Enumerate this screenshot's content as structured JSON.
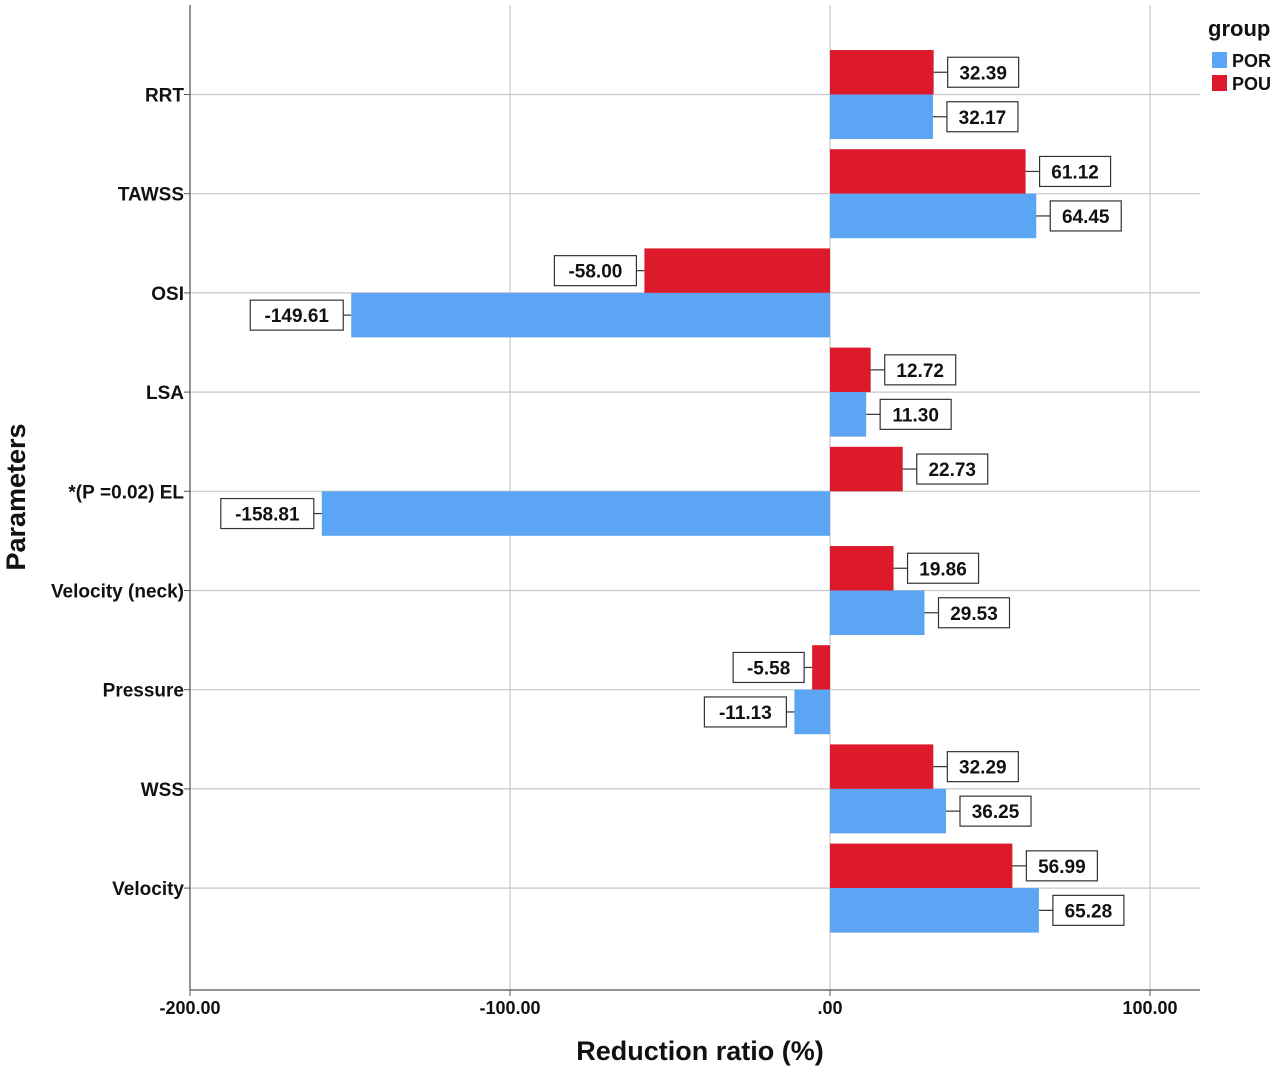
{
  "chart_data": {
    "type": "bar",
    "orientation": "horizontal",
    "xlabel": "Reduction ratio (%)",
    "ylabel": "Parameters",
    "xlim": [
      -200,
      100
    ],
    "x_ticks": [
      -200,
      -100,
      0,
      100
    ],
    "x_tick_labels": [
      "-200.00",
      "-100.00",
      ".00",
      "100.00"
    ],
    "grid": true,
    "legend": {
      "title": "group",
      "position": "top-right",
      "entries": [
        "POR",
        "POU"
      ]
    },
    "categories": [
      "RRT",
      "TAWSS",
      "OSI",
      "LSA",
      "*(P =0.02) EL",
      "Velocity (neck)",
      "Pressure",
      "WSS",
      "Velocity"
    ],
    "series": [
      {
        "name": "POU",
        "color": "#dc1a2c",
        "values": [
          32.39,
          61.12,
          -58.0,
          12.72,
          22.73,
          19.86,
          -5.58,
          32.29,
          56.99
        ],
        "value_labels": [
          "32.39",
          "61.12",
          "-58.00",
          "12.72",
          "22.73",
          "19.86",
          "-5.58",
          "32.29",
          "56.99"
        ]
      },
      {
        "name": "POR",
        "color": "#5ca5f5",
        "values": [
          32.17,
          64.45,
          -149.61,
          11.3,
          -158.81,
          29.53,
          -11.13,
          36.25,
          65.28
        ],
        "value_labels": [
          "32.17",
          "64.45",
          "-149.61",
          "11.30",
          "-158.81",
          "29.53",
          "-11.13",
          "36.25",
          "65.28"
        ]
      }
    ]
  }
}
